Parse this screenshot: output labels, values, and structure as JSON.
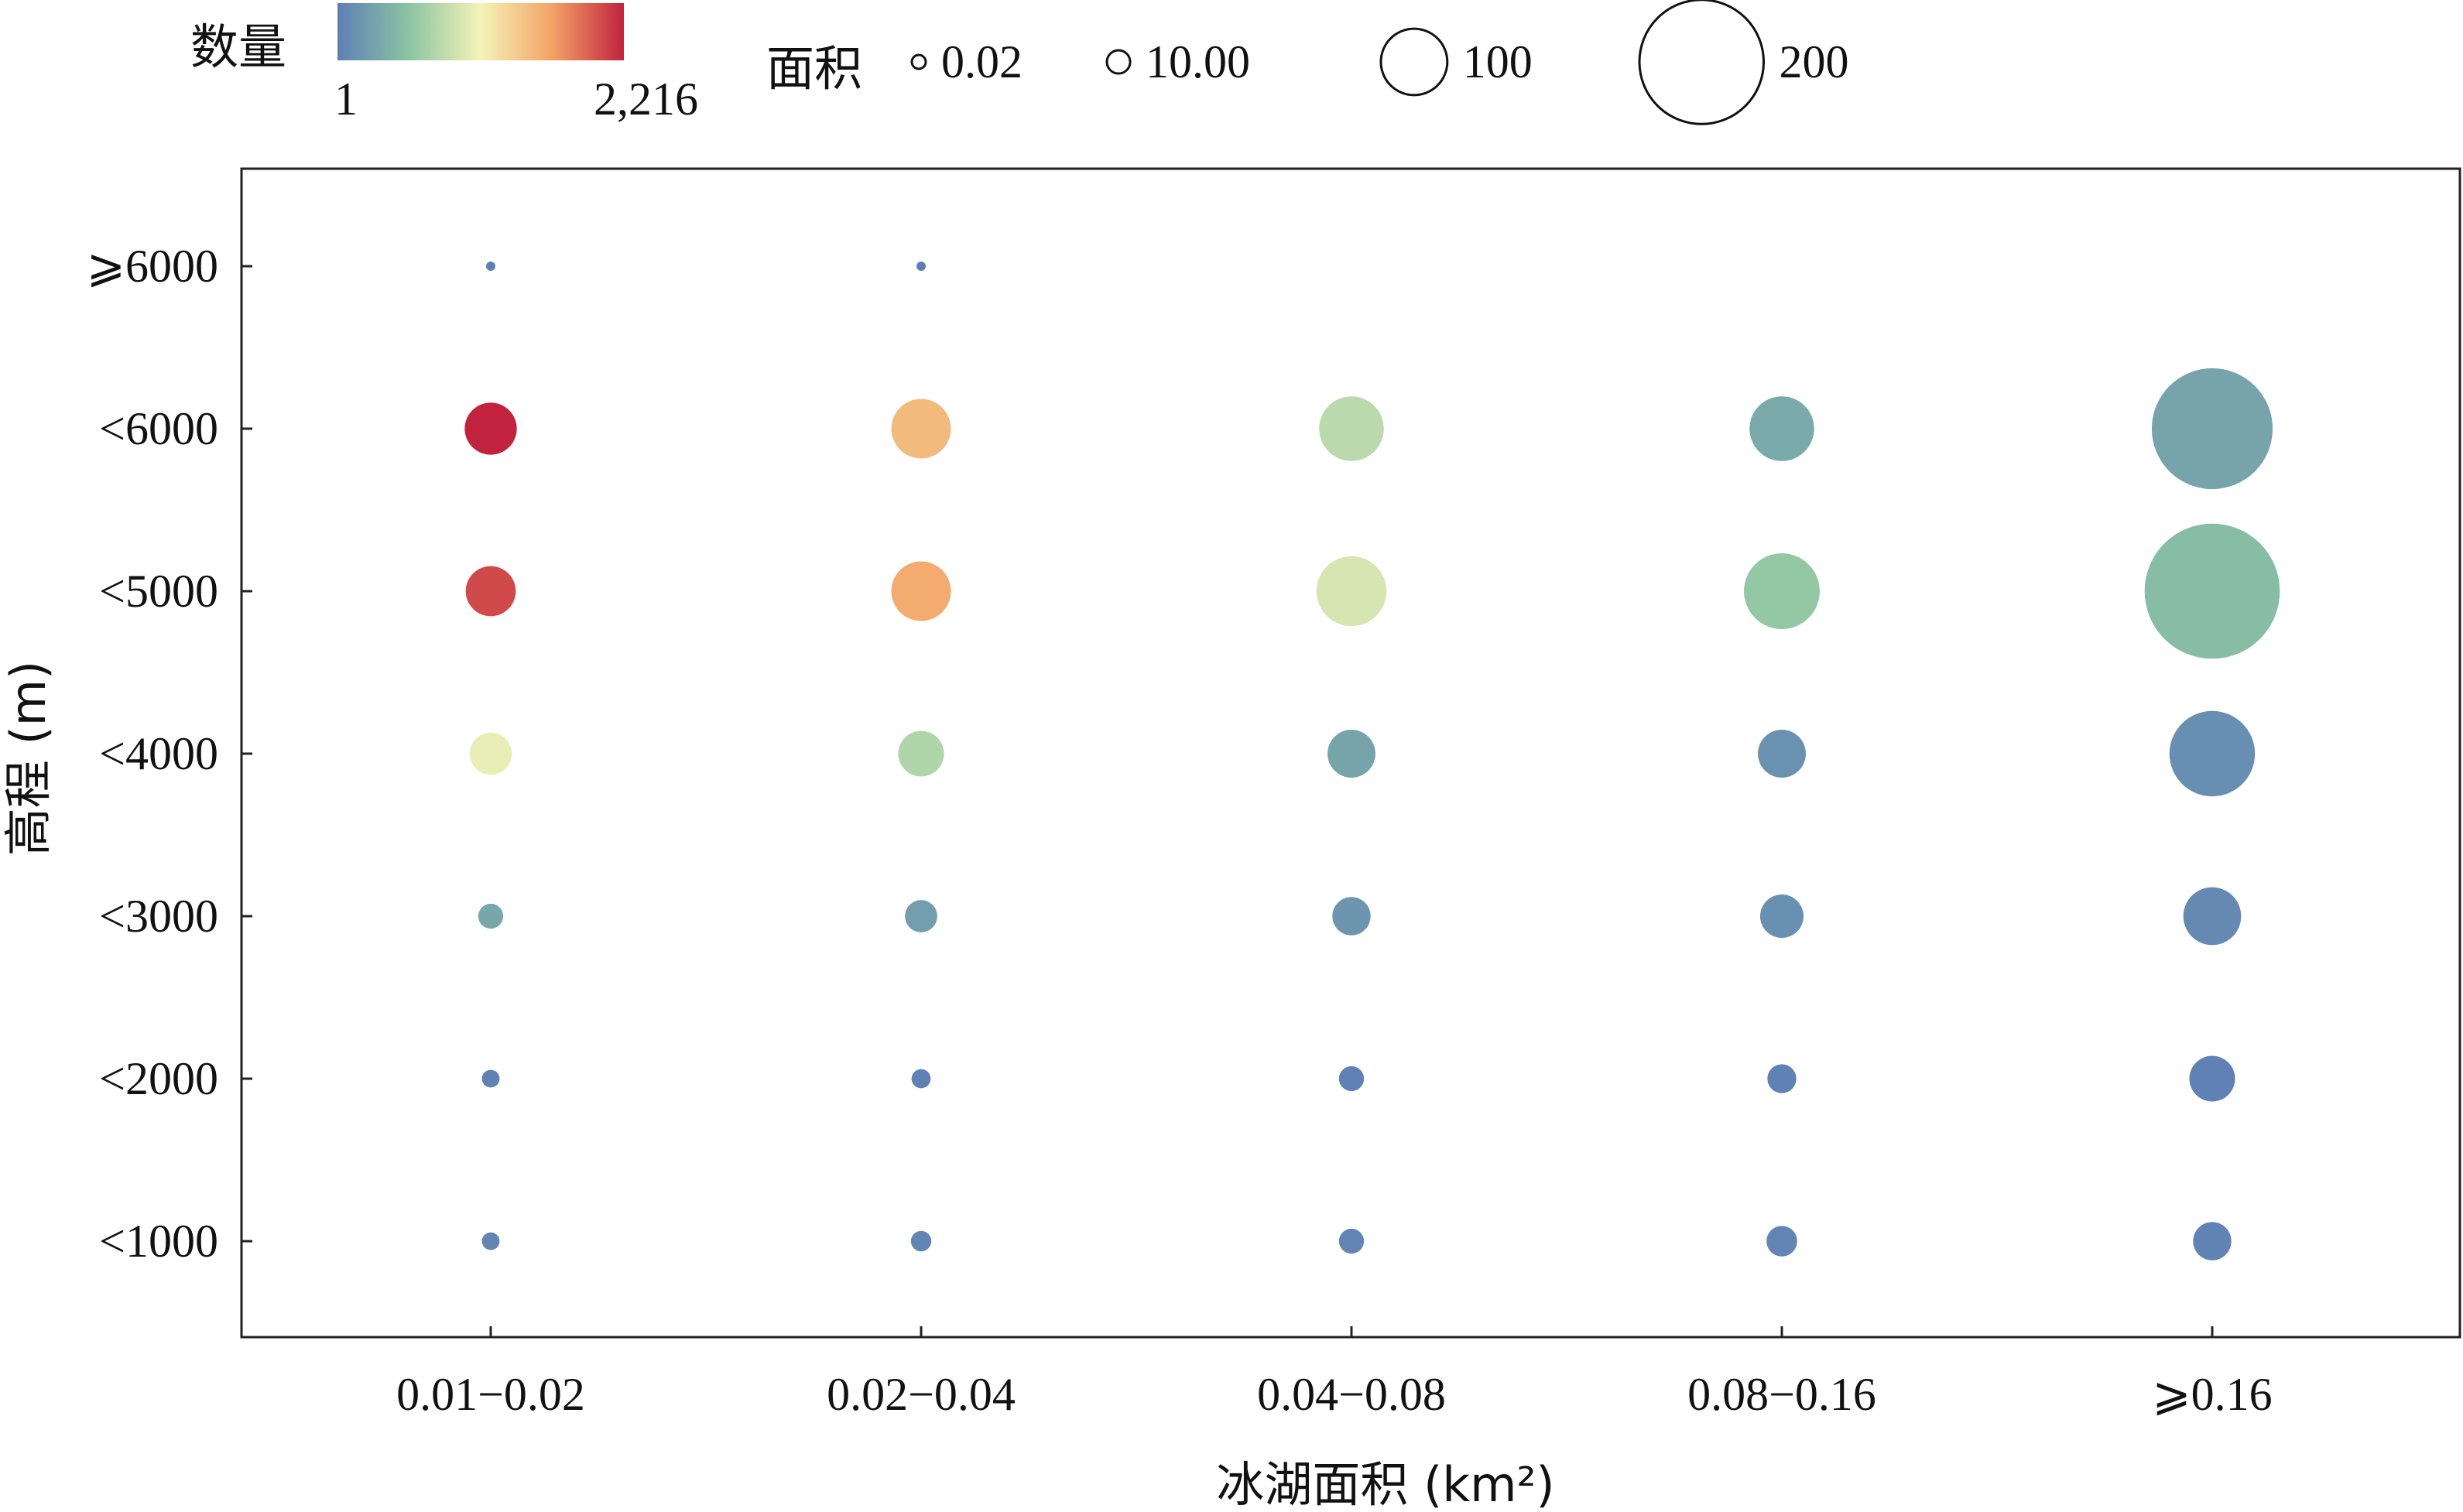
{
  "chart_data": {
    "type": "scatter",
    "xlabel": "冰湖面积 (km²)",
    "ylabel": "高程 (m)",
    "categories_x": [
      "0.01−0.02",
      "0.02−0.04",
      "0.04−0.08",
      "0.08−0.16",
      "⩾0.16"
    ],
    "categories_y": [
      "<1000",
      "<2000",
      "<3000",
      "<4000",
      "<5000",
      "<6000",
      "⩾6000"
    ],
    "color_legend": {
      "label": "数量",
      "min_label": "1",
      "max_label": "2,216",
      "min": 1,
      "max": 2216
    },
    "size_legend": {
      "label": "面积",
      "items": [
        {
          "label": "0.02",
          "value": 0.02
        },
        {
          "label": "10.00",
          "value": 10
        },
        {
          "label": "100",
          "value": 100
        },
        {
          "label": "200",
          "value": 200
        }
      ]
    },
    "colormap": [
      "#5e7fb5",
      "#8cc4a3",
      "#f4f3b8",
      "#f3a266",
      "#c1233f"
    ],
    "points": [
      {
        "x": "0.01−0.02",
        "y": "⩾6000",
        "count": 1,
        "area": 0.05
      },
      {
        "x": "0.02−0.04",
        "y": "⩾6000",
        "count": 1,
        "area": 0.05
      },
      {
        "x": "0.01−0.02",
        "y": "<6000",
        "count": 2216,
        "area": 26
      },
      {
        "x": "0.02−0.04",
        "y": "<6000",
        "count": 1500,
        "area": 34
      },
      {
        "x": "0.04−0.08",
        "y": "<6000",
        "count": 800,
        "area": 40
      },
      {
        "x": "0.08−0.16",
        "y": "<6000",
        "count": 350,
        "area": 40
      },
      {
        "x": "0.16+",
        "y": "<6000",
        "count": 300,
        "area": 140
      },
      {
        "x": "0.01−0.02",
        "y": "<5000",
        "count": 2050,
        "area": 24
      },
      {
        "x": "0.02−0.04",
        "y": "<5000",
        "count": 1600,
        "area": 34
      },
      {
        "x": "0.04−0.08",
        "y": "<5000",
        "count": 950,
        "area": 47
      },
      {
        "x": "0.08−0.16",
        "y": "<5000",
        "count": 600,
        "area": 55
      },
      {
        "x": "0.16+",
        "y": "<5000",
        "count": 500,
        "area": 175
      },
      {
        "x": "0.01−0.02",
        "y": "<4000",
        "count": 1050,
        "area": 17
      },
      {
        "x": "0.02−0.04",
        "y": "<4000",
        "count": 750,
        "area": 20
      },
      {
        "x": "0.04−0.08",
        "y": "<4000",
        "count": 300,
        "area": 22
      },
      {
        "x": "0.08−0.16",
        "y": "<4000",
        "count": 150,
        "area": 22
      },
      {
        "x": "0.16+",
        "y": "<4000",
        "count": 120,
        "area": 70
      },
      {
        "x": "0.01−0.02",
        "y": "<3000",
        "count": 320,
        "area": 6
      },
      {
        "x": "0.02−0.04",
        "y": "<3000",
        "count": 250,
        "area": 10
      },
      {
        "x": "0.04−0.08",
        "y": "<3000",
        "count": 180,
        "area": 14
      },
      {
        "x": "0.08−0.16",
        "y": "<3000",
        "count": 130,
        "area": 18
      },
      {
        "x": "0.16+",
        "y": "<3000",
        "count": 80,
        "area": 32
      },
      {
        "x": "0.01−0.02",
        "y": "<2000",
        "count": 20,
        "area": 3
      },
      {
        "x": "0.02−0.04",
        "y": "<2000",
        "count": 20,
        "area": 3.5
      },
      {
        "x": "0.04−0.08",
        "y": "<2000",
        "count": 20,
        "area": 6
      },
      {
        "x": "0.08−0.16",
        "y": "<2000",
        "count": 20,
        "area": 8
      },
      {
        "x": "0.16+",
        "y": "<2000",
        "count": 20,
        "area": 20
      },
      {
        "x": "0.01−0.02",
        "y": "<1000",
        "count": 50,
        "area": 3
      },
      {
        "x": "0.02−0.04",
        "y": "<1000",
        "count": 50,
        "area": 4
      },
      {
        "x": "0.04−0.08",
        "y": "<1000",
        "count": 50,
        "area": 6
      },
      {
        "x": "0.08−0.16",
        "y": "<1000",
        "count": 50,
        "area": 9
      },
      {
        "x": "0.16+",
        "y": "<1000",
        "count": 40,
        "area": 14
      }
    ]
  }
}
